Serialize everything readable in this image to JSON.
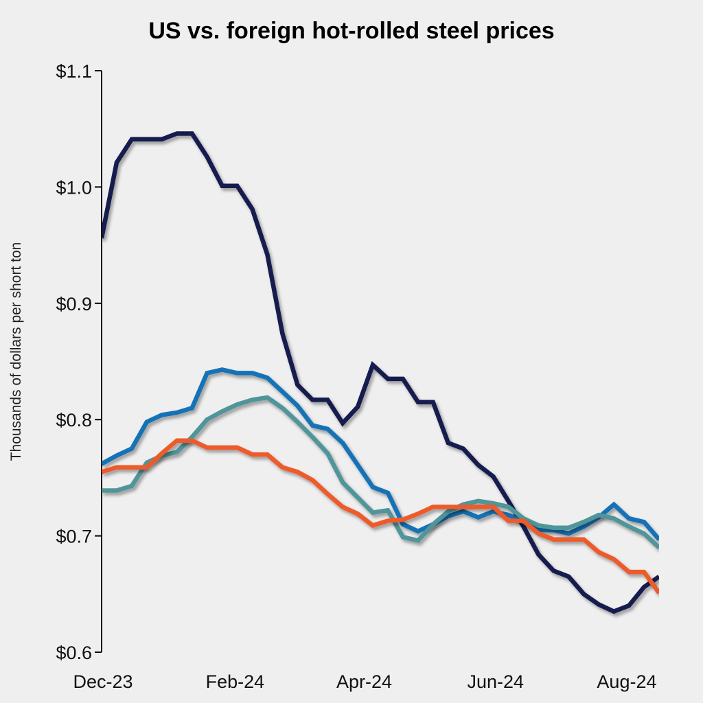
{
  "chart_data": {
    "type": "line",
    "title": "US vs. foreign hot-rolled steel prices",
    "xlabel": "",
    "ylabel": "Thousands of dollars per short ton",
    "ylim": [
      0.6,
      1.1
    ],
    "yticks": [
      0.6,
      0.7,
      0.8,
      0.9,
      1.0,
      1.1
    ],
    "ytick_labels": [
      "$0.6",
      "$0.7",
      "$0.8",
      "$0.9",
      "$1.0",
      "$1.1"
    ],
    "xticks": [
      "2023-12-01",
      "2024-02-01",
      "2024-04-01",
      "2024-06-01",
      "2024-08-01"
    ],
    "xtick_labels": [
      "Dec-23",
      "Feb-24",
      "Apr-24",
      "Jun-24",
      "Aug-24"
    ],
    "xlim": [
      "2023-12-01",
      "2024-08-16"
    ],
    "grid": false,
    "legend": "none",
    "x_start": "2023-12-01",
    "x_step_days": 7,
    "series": [
      {
        "color": "#141c4e",
        "values": [
          0.956,
          1.021,
          1.041,
          1.041,
          1.041,
          1.046,
          1.046,
          1.026,
          1.001,
          1.001,
          0.981,
          0.942,
          0.874,
          0.83,
          0.817,
          0.817,
          0.797,
          0.811,
          0.847,
          0.835,
          0.835,
          0.815,
          0.815,
          0.78,
          0.775,
          0.761,
          0.751,
          0.73,
          0.708,
          0.684,
          0.67,
          0.665,
          0.65,
          0.641,
          0.635,
          0.64,
          0.656,
          0.665
        ]
      },
      {
        "color": "#1272b6",
        "values": [
          0.762,
          0.769,
          0.775,
          0.798,
          0.804,
          0.806,
          0.81,
          0.84,
          0.843,
          0.84,
          0.84,
          0.836,
          0.824,
          0.812,
          0.795,
          0.792,
          0.78,
          0.761,
          0.742,
          0.737,
          0.71,
          0.704,
          0.71,
          0.717,
          0.721,
          0.716,
          0.721,
          0.718,
          0.712,
          0.705,
          0.705,
          0.702,
          0.708,
          0.716,
          0.727,
          0.715,
          0.712,
          0.697
        ]
      },
      {
        "color": "#4f9599",
        "values": [
          0.739,
          0.739,
          0.743,
          0.763,
          0.769,
          0.772,
          0.785,
          0.8,
          0.807,
          0.813,
          0.817,
          0.819,
          0.81,
          0.798,
          0.785,
          0.771,
          0.746,
          0.733,
          0.72,
          0.722,
          0.699,
          0.696,
          0.71,
          0.721,
          0.727,
          0.73,
          0.728,
          0.725,
          0.715,
          0.709,
          0.707,
          0.707,
          0.712,
          0.718,
          0.715,
          0.708,
          0.702,
          0.69
        ]
      },
      {
        "color": "#ee5a2b",
        "values": [
          0.755,
          0.759,
          0.759,
          0.759,
          0.771,
          0.782,
          0.782,
          0.776,
          0.776,
          0.776,
          0.77,
          0.77,
          0.759,
          0.755,
          0.748,
          0.736,
          0.725,
          0.719,
          0.709,
          0.713,
          0.714,
          0.719,
          0.725,
          0.725,
          0.725,
          0.725,
          0.725,
          0.713,
          0.713,
          0.702,
          0.697,
          0.697,
          0.697,
          0.686,
          0.68,
          0.669,
          0.669,
          0.651
        ]
      }
    ]
  }
}
